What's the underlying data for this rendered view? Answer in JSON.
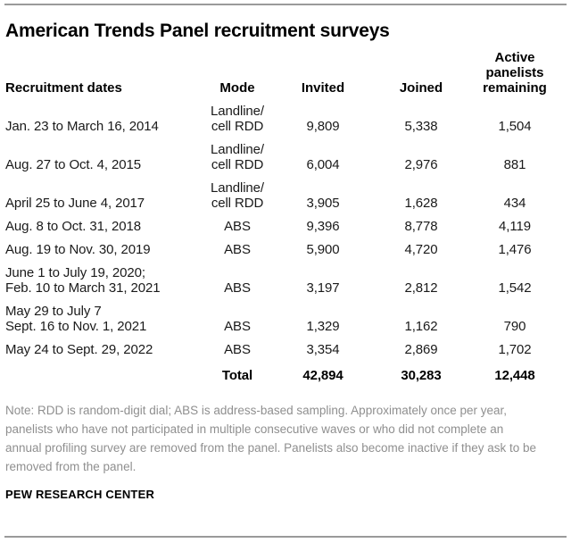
{
  "page": {
    "title": "American Trends Panel recruitment surveys",
    "note": "Note: RDD is random-digit dial; ABS is address-based sampling. Approximately once per year, panelists who have not participated in multiple consecutive waves or who did not complete an annual profiling survey are removed from the panel. Panelists also become inactive if they ask to be removed from the panel.",
    "source": "PEW RESEARCH CENTER"
  },
  "table": {
    "headers": {
      "dates": "Recruitment dates",
      "mode": "Mode",
      "invited": "Invited",
      "joined": "Joined",
      "active": "Active\npanelists\nremaining"
    },
    "rows": [
      {
        "dates": "Jan. 23 to March 16, 2014",
        "mode": "Landline/\ncell RDD",
        "invited": "9,809",
        "joined": "5,338",
        "active": "1,504"
      },
      {
        "dates": "Aug. 27 to Oct. 4, 2015",
        "mode": "Landline/\ncell RDD",
        "invited": "6,004",
        "joined": "2,976",
        "active": "881"
      },
      {
        "dates": "April 25 to June 4, 2017",
        "mode": "Landline/\ncell RDD",
        "invited": "3,905",
        "joined": "1,628",
        "active": "434"
      },
      {
        "dates": "Aug. 8 to Oct. 31, 2018",
        "mode": "ABS",
        "invited": "9,396",
        "joined": "8,778",
        "active": "4,119"
      },
      {
        "dates": "Aug. 19 to Nov. 30, 2019",
        "mode": "ABS",
        "invited": "5,900",
        "joined": "4,720",
        "active": "1,476"
      },
      {
        "dates": "June 1 to July 19, 2020;\nFeb. 10 to March 31, 2021",
        "mode": "ABS",
        "invited": "3,197",
        "joined": "2,812",
        "active": "1,542"
      },
      {
        "dates": "May 29 to July 7\nSept. 16 to Nov. 1, 2021",
        "mode": "ABS",
        "invited": "1,329",
        "joined": "1,162",
        "active": "790"
      },
      {
        "dates": "May 24 to Sept. 29, 2022",
        "mode": "ABS",
        "invited": "3,354",
        "joined": "2,869",
        "active": "1,702"
      }
    ],
    "total": {
      "dates": "",
      "label": "Total",
      "invited": "42,894",
      "joined": "30,283",
      "active": "12,448"
    }
  },
  "chart_data": {
    "type": "table",
    "title": "American Trends Panel recruitment surveys",
    "columns": [
      "Recruitment dates",
      "Mode",
      "Invited",
      "Joined",
      "Active panelists remaining"
    ],
    "rows": [
      [
        "Jan. 23 to March 16, 2014",
        "Landline/cell RDD",
        9809,
        5338,
        1504
      ],
      [
        "Aug. 27 to Oct. 4, 2015",
        "Landline/cell RDD",
        6004,
        2976,
        881
      ],
      [
        "April 25 to June 4, 2017",
        "Landline/cell RDD",
        3905,
        1628,
        434
      ],
      [
        "Aug. 8 to Oct. 31, 2018",
        "ABS",
        9396,
        8778,
        4119
      ],
      [
        "Aug. 19 to Nov. 30, 2019",
        "ABS",
        5900,
        4720,
        1476
      ],
      [
        "June 1 to July 19, 2020; Feb. 10 to March 31, 2021",
        "ABS",
        3197,
        2812,
        1542
      ],
      [
        "May 29 to July 7 / Sept. 16 to Nov. 1, 2021",
        "ABS",
        1329,
        1162,
        790
      ],
      [
        "May 24 to Sept. 29, 2022",
        "ABS",
        3354,
        2869,
        1702
      ]
    ],
    "totals": {
      "label": "Total",
      "invited": 42894,
      "joined": 30283,
      "active_panelists_remaining": 12448
    },
    "note": "Note: RDD is random-digit dial; ABS is address-based sampling. Approximately once per year, panelists who have not participated in multiple consecutive waves or who did not complete an annual profiling survey are removed from the panel. Panelists also become inactive if they ask to be removed from the panel.",
    "source": "PEW RESEARCH CENTER",
    "colors": {
      "text": "#1a1a1a",
      "note_gray": "#8f8f8f",
      "rule_gray": "#9a9a9a"
    }
  }
}
